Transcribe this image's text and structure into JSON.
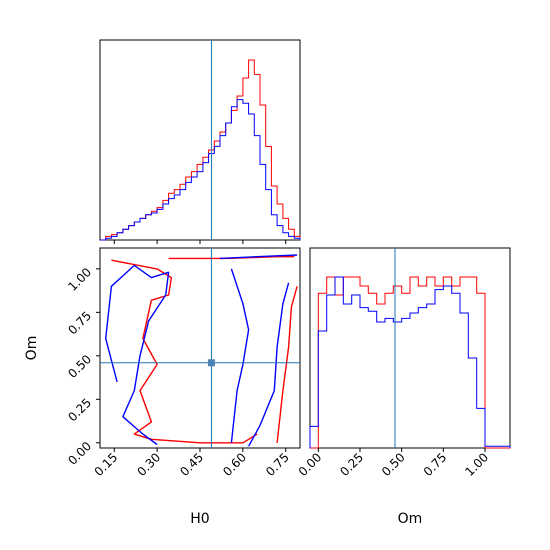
{
  "chart_data": [
    {
      "panel": "H0 marginal",
      "type": "histogram",
      "x_range": [
        0.1,
        0.8
      ],
      "truth": 0.49,
      "bins": [
        0.1,
        0.12,
        0.14,
        0.16,
        0.18,
        0.2,
        0.22,
        0.24,
        0.26,
        0.28,
        0.3,
        0.32,
        0.34,
        0.36,
        0.38,
        0.4,
        0.42,
        0.44,
        0.46,
        0.48,
        0.5,
        0.52,
        0.54,
        0.56,
        0.58,
        0.6,
        0.62,
        0.64,
        0.66,
        0.68,
        0.7,
        0.72,
        0.74,
        0.76,
        0.78,
        0.8
      ],
      "series": [
        {
          "color": "#ff0000",
          "values": [
            0,
            0.02,
            0.03,
            0.04,
            0.06,
            0.08,
            0.1,
            0.12,
            0.14,
            0.16,
            0.18,
            0.22,
            0.26,
            0.28,
            0.31,
            0.35,
            0.38,
            0.42,
            0.46,
            0.5,
            0.55,
            0.6,
            0.65,
            0.72,
            0.8,
            0.9,
            1.0,
            0.92,
            0.75,
            0.52,
            0.3,
            0.2,
            0.12,
            0.06,
            0.02
          ]
        },
        {
          "color": "#0000ff",
          "values": [
            0,
            0.01,
            0.02,
            0.04,
            0.06,
            0.08,
            0.1,
            0.12,
            0.14,
            0.15,
            0.17,
            0.2,
            0.23,
            0.25,
            0.28,
            0.32,
            0.35,
            0.38,
            0.43,
            0.48,
            0.52,
            0.58,
            0.65,
            0.74,
            0.78,
            0.76,
            0.7,
            0.58,
            0.42,
            0.28,
            0.14,
            0.08,
            0.04,
            0.02,
            0.01
          ]
        }
      ]
    },
    {
      "panel": "joint H0-Om",
      "type": "contour",
      "xlabel": "H0",
      "ylabel": "Om",
      "x_range": [
        0.1,
        0.8
      ],
      "y_range": [
        -0.03,
        1.12
      ],
      "truth": {
        "x": 0.49,
        "y": 0.46
      },
      "x_ticks": [
        "0.15",
        "0.30",
        "0.45",
        "0.60",
        "0.75"
      ],
      "y_ticks": [
        "0.00",
        "0.25",
        "0.50",
        "0.75",
        "1.00"
      ],
      "x_tick_values": [
        0.15,
        0.3,
        0.45,
        0.6,
        0.75
      ],
      "y_tick_values": [
        0.0,
        0.25,
        0.5,
        0.75,
        1.0
      ],
      "series": [
        {
          "color": "#ff0000",
          "contours": [
            [
              [
                0.14,
                1.05
              ],
              [
                0.3,
                1.0
              ],
              [
                0.35,
                0.95
              ],
              [
                0.34,
                0.85
              ],
              [
                0.28,
                0.82
              ],
              [
                0.25,
                0.6
              ],
              [
                0.3,
                0.45
              ],
              [
                0.24,
                0.3
              ],
              [
                0.28,
                0.12
              ],
              [
                0.22,
                0.05
              ],
              [
                0.28,
                0.02
              ],
              [
                0.45,
                0.0
              ],
              [
                0.6,
                0.0
              ],
              [
                0.65,
                0.05
              ]
            ],
            [
              [
                0.34,
                1.06
              ],
              [
                0.55,
                1.06
              ],
              [
                0.72,
                1.07
              ],
              [
                0.78,
                1.07
              ]
            ],
            [
              [
                0.72,
                0.0
              ],
              [
                0.74,
                0.3
              ],
              [
                0.76,
                0.55
              ],
              [
                0.77,
                0.78
              ],
              [
                0.79,
                0.9
              ]
            ]
          ]
        },
        {
          "color": "#0000ff",
          "contours": [
            [
              [
                0.16,
                0.35
              ],
              [
                0.12,
                0.6
              ],
              [
                0.14,
                0.9
              ],
              [
                0.22,
                1.02
              ],
              [
                0.28,
                0.95
              ],
              [
                0.34,
                0.98
              ],
              [
                0.33,
                0.85
              ],
              [
                0.27,
                0.7
              ],
              [
                0.24,
                0.5
              ],
              [
                0.22,
                0.3
              ],
              [
                0.18,
                0.15
              ],
              [
                0.25,
                0.05
              ],
              [
                0.3,
                -0.01
              ]
            ],
            [
              [
                0.52,
                1.06
              ],
              [
                0.65,
                1.07
              ],
              [
                0.79,
                1.08
              ]
            ],
            [
              [
                0.56,
                1.0
              ],
              [
                0.6,
                0.8
              ],
              [
                0.62,
                0.65
              ],
              [
                0.6,
                0.45
              ],
              [
                0.58,
                0.3
              ],
              [
                0.56,
                0.0
              ]
            ],
            [
              [
                0.62,
                -0.02
              ],
              [
                0.66,
                0.1
              ],
              [
                0.71,
                0.3
              ],
              [
                0.72,
                0.55
              ],
              [
                0.74,
                0.8
              ],
              [
                0.76,
                0.92
              ]
            ]
          ]
        }
      ]
    },
    {
      "panel": "Om marginal",
      "type": "histogram",
      "xlabel": "Om",
      "x_range": [
        -0.05,
        1.15
      ],
      "truth": 0.46,
      "x_ticks": [
        "0.00",
        "0.25",
        "0.50",
        "0.75",
        "1.00"
      ],
      "x_tick_values": [
        0.0,
        0.25,
        0.5,
        0.75,
        1.0
      ],
      "bins": [
        -0.05,
        0.0,
        0.05,
        0.1,
        0.15,
        0.2,
        0.25,
        0.3,
        0.35,
        0.4,
        0.45,
        0.5,
        0.55,
        0.6,
        0.65,
        0.7,
        0.75,
        0.8,
        0.85,
        0.9,
        0.95,
        1.0,
        1.05,
        1.1,
        1.15
      ],
      "series": [
        {
          "color": "#ff0000",
          "values": [
            0,
            0.86,
            0.95,
            0.85,
            0.95,
            0.95,
            0.9,
            0.86,
            0.8,
            0.86,
            0.9,
            0.86,
            0.95,
            0.9,
            0.95,
            0.9,
            0.95,
            0.9,
            0.95,
            0.95,
            0.86,
            0,
            0,
            0
          ]
        },
        {
          "color": "#0000ff",
          "values": [
            0.12,
            0.65,
            0.85,
            0.95,
            0.8,
            0.85,
            0.78,
            0.76,
            0.7,
            0.72,
            0.7,
            0.72,
            0.75,
            0.78,
            0.8,
            0.88,
            0.9,
            0.86,
            0.75,
            0.5,
            0.22,
            0.01,
            0.01,
            0.01
          ]
        }
      ]
    }
  ]
}
